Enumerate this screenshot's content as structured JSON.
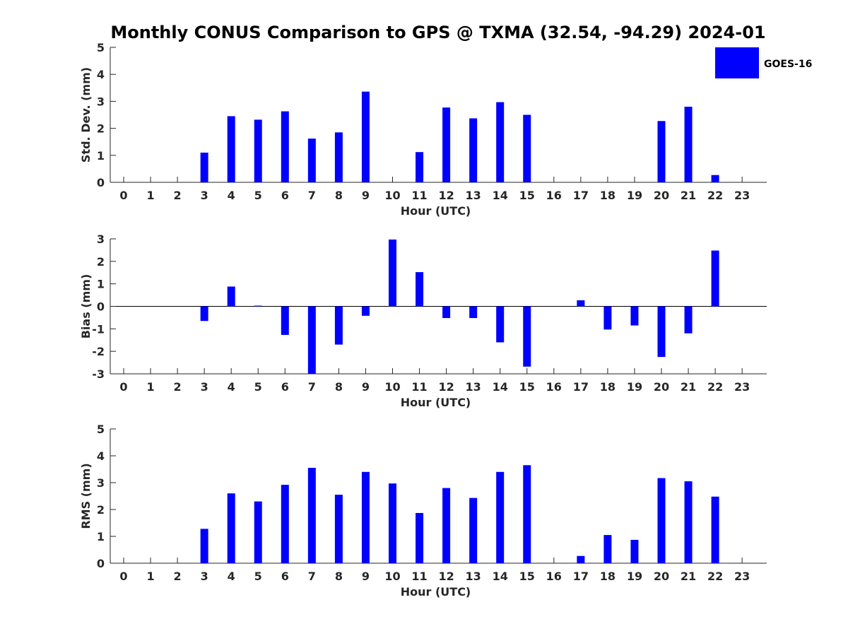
{
  "chart_data": {
    "title": "Monthly CONUS Comparison to GPS @ TXMA (32.54, -94.29) 2024-01",
    "type": "bar",
    "colors": {
      "bar": "#0000ff",
      "axis": "#262626"
    },
    "legend": {
      "label": "GOES-16",
      "placement": "top-right"
    },
    "categories": [
      "0",
      "1",
      "2",
      "3",
      "4",
      "5",
      "6",
      "7",
      "8",
      "9",
      "10",
      "11",
      "12",
      "13",
      "14",
      "15",
      "16",
      "17",
      "18",
      "19",
      "20",
      "21",
      "22",
      "23"
    ],
    "panels": [
      {
        "id": "std",
        "ylabel": "Std. Dev. (mm)",
        "xlabel": "Hour (UTC)",
        "ylim": [
          0,
          5
        ],
        "yticks": [
          "0",
          "1",
          "2",
          "3",
          "4",
          "5"
        ],
        "zero_line": false,
        "series": [
          {
            "name": "GOES-16",
            "values": [
              null,
              null,
              null,
              1.1,
              2.45,
              2.32,
              2.63,
              1.62,
              1.85,
              3.36,
              null,
              1.12,
              2.77,
              2.37,
              2.97,
              2.5,
              null,
              null,
              null,
              null,
              2.27,
              2.8,
              0.27,
              null
            ]
          }
        ]
      },
      {
        "id": "bias",
        "ylabel": "Bias (mm)",
        "xlabel": "Hour (UTC)",
        "ylim": [
          -3,
          3
        ],
        "yticks": [
          "-3",
          "-2",
          "-1",
          "0",
          "1",
          "2",
          "3"
        ],
        "zero_line": true,
        "series": [
          {
            "name": "GOES-16",
            "values": [
              null,
              null,
              null,
              -0.65,
              0.88,
              0.03,
              -1.27,
              -3.0,
              -1.7,
              -0.42,
              2.97,
              1.52,
              -0.52,
              -0.52,
              -1.6,
              -2.68,
              null,
              0.27,
              -1.03,
              -0.85,
              -2.25,
              -1.2,
              2.48,
              null
            ]
          }
        ]
      },
      {
        "id": "rms",
        "ylabel": "RMS (mm)",
        "xlabel": "Hour (UTC)",
        "ylim": [
          0,
          5
        ],
        "yticks": [
          "0",
          "1",
          "2",
          "3",
          "4",
          "5"
        ],
        "zero_line": false,
        "series": [
          {
            "name": "GOES-16",
            "values": [
              null,
              null,
              null,
              1.28,
              2.6,
              2.3,
              2.92,
              3.55,
              2.55,
              3.4,
              2.97,
              1.87,
              2.8,
              2.43,
              3.4,
              3.65,
              null,
              0.27,
              1.05,
              0.87,
              3.17,
              3.05,
              2.48,
              null
            ]
          }
        ]
      }
    ]
  }
}
